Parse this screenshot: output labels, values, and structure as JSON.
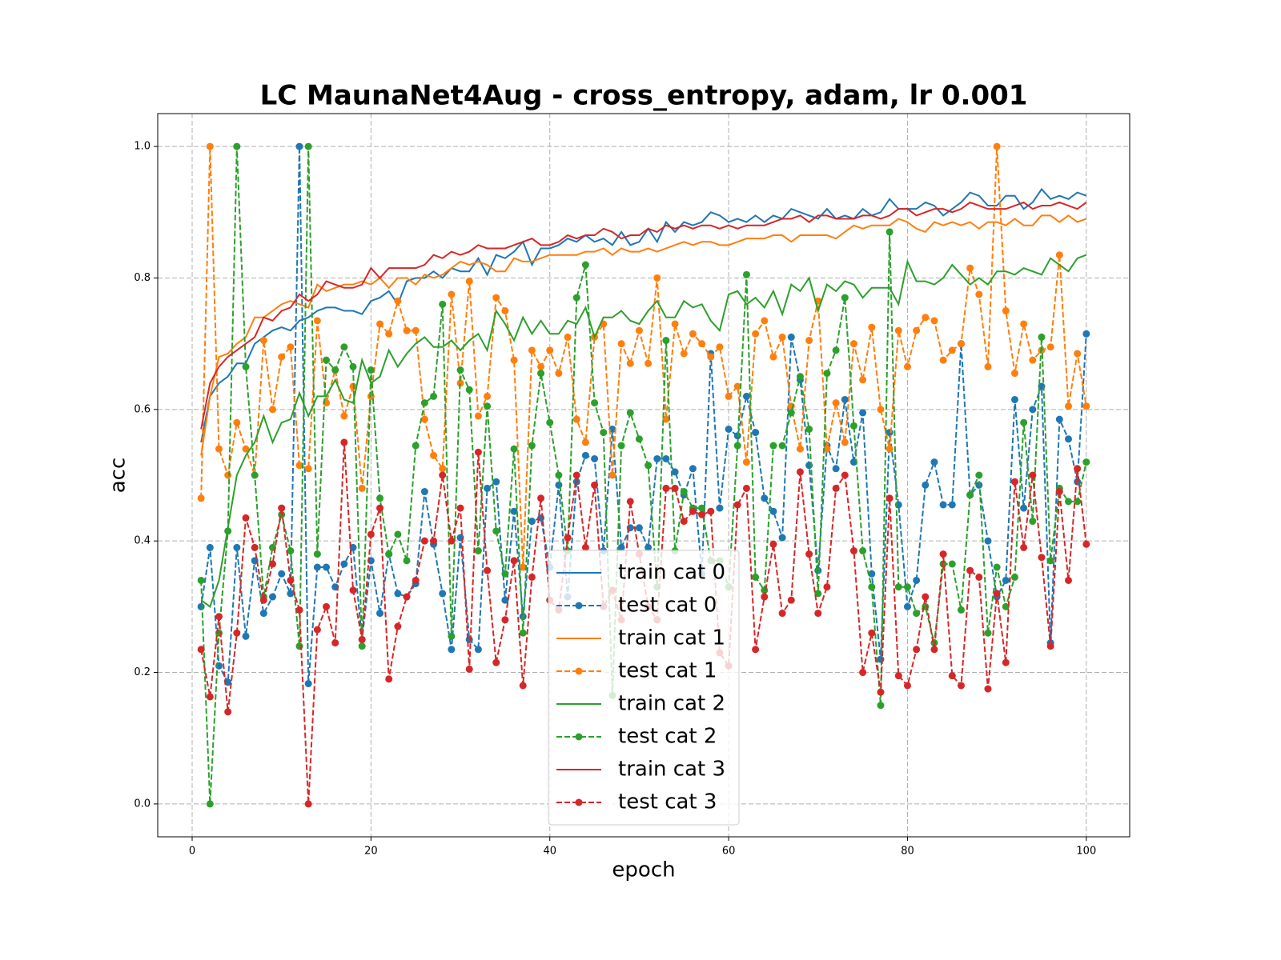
{
  "chart_data": {
    "type": "line",
    "title": "LC MaunaNet4Aug - cross_entropy, adam, lr 0.001",
    "xlabel": "epoch",
    "ylabel": "acc",
    "xlim": [
      -3.85,
      104.85
    ],
    "ylim": [
      -0.05,
      1.05
    ],
    "xticks": [
      0,
      20,
      40,
      60,
      80,
      100
    ],
    "yticks": [
      {
        "value": 0,
        "label": "0.0"
      },
      0.2,
      0.4,
      0.6,
      0.8,
      {
        "value": 1,
        "label": "1.0"
      }
    ],
    "grid": true,
    "legend_loc": "lower center",
    "x": [
      1,
      2,
      3,
      4,
      5,
      6,
      7,
      8,
      9,
      10,
      11,
      12,
      13,
      14,
      15,
      16,
      17,
      18,
      19,
      20,
      21,
      22,
      23,
      24,
      25,
      26,
      27,
      28,
      29,
      30,
      31,
      32,
      33,
      34,
      35,
      36,
      37,
      38,
      39,
      40,
      41,
      42,
      43,
      44,
      45,
      46,
      47,
      48,
      49,
      50,
      51,
      52,
      53,
      54,
      55,
      56,
      57,
      58,
      59,
      60,
      61,
      62,
      63,
      64,
      65,
      66,
      67,
      68,
      69,
      70,
      71,
      72,
      73,
      74,
      75,
      76,
      77,
      78,
      79,
      80,
      81,
      82,
      83,
      84,
      85,
      86,
      87,
      88,
      89,
      90,
      91,
      92,
      93,
      94,
      95,
      96,
      97,
      98,
      99,
      100
    ],
    "series": [
      {
        "name": "train cat 0",
        "color": "#1f77b4",
        "linestyle": "solid",
        "marker": false,
        "values": [
          0.55,
          0.62,
          0.64,
          0.65,
          0.67,
          0.67,
          0.7,
          0.71,
          0.72,
          0.725,
          0.72,
          0.735,
          0.74,
          0.75,
          0.755,
          0.755,
          0.75,
          0.75,
          0.745,
          0.765,
          0.77,
          0.78,
          0.76,
          0.795,
          0.8,
          0.8,
          0.81,
          0.8,
          0.815,
          0.81,
          0.81,
          0.83,
          0.805,
          0.835,
          0.83,
          0.84,
          0.855,
          0.82,
          0.845,
          0.845,
          0.85,
          0.86,
          0.855,
          0.865,
          0.855,
          0.86,
          0.85,
          0.87,
          0.85,
          0.855,
          0.875,
          0.855,
          0.885,
          0.87,
          0.885,
          0.88,
          0.885,
          0.9,
          0.895,
          0.885,
          0.89,
          0.885,
          0.895,
          0.885,
          0.895,
          0.89,
          0.905,
          0.9,
          0.895,
          0.89,
          0.905,
          0.89,
          0.895,
          0.89,
          0.905,
          0.895,
          0.9,
          0.92,
          0.905,
          0.905,
          0.905,
          0.915,
          0.91,
          0.895,
          0.905,
          0.915,
          0.93,
          0.925,
          0.91,
          0.91,
          0.925,
          0.925,
          0.905,
          0.915,
          0.935,
          0.92,
          0.925,
          0.92,
          0.93,
          0.925
        ]
      },
      {
        "name": "test cat 0",
        "color": "#1f77b4",
        "linestyle": "dashed",
        "marker": true,
        "values": [
          0.3,
          0.39,
          0.21,
          0.185,
          0.39,
          0.255,
          0.37,
          0.29,
          0.315,
          0.35,
          0.32,
          1.0,
          0.183,
          0.36,
          0.36,
          0.33,
          0.365,
          0.39,
          0.25,
          0.37,
          0.29,
          0.38,
          0.32,
          0.315,
          0.335,
          0.475,
          0.395,
          0.32,
          0.235,
          0.405,
          0.25,
          0.235,
          0.48,
          0.49,
          0.31,
          0.445,
          0.285,
          0.43,
          0.435,
          0.36,
          0.485,
          0.315,
          0.49,
          0.53,
          0.525,
          0.385,
          0.57,
          0.39,
          0.42,
          0.42,
          0.39,
          0.525,
          0.525,
          0.505,
          0.47,
          0.51,
          0.35,
          0.685,
          0.45,
          0.57,
          0.56,
          0.62,
          0.565,
          0.465,
          0.445,
          0.405,
          0.71,
          0.645,
          0.515,
          0.355,
          0.545,
          0.51,
          0.615,
          0.52,
          0.595,
          0.35,
          0.22,
          0.565,
          0.455,
          0.3,
          0.34,
          0.485,
          0.52,
          0.455,
          0.455,
          0.7,
          0.47,
          0.485,
          0.4,
          0.315,
          0.34,
          0.615,
          0.45,
          0.6,
          0.635,
          0.245,
          0.585,
          0.555,
          0.49,
          0.715
        ]
      },
      {
        "name": "train cat 1",
        "color": "#ff7f0e",
        "linestyle": "solid",
        "marker": false,
        "values": [
          0.53,
          0.62,
          0.68,
          0.685,
          0.7,
          0.71,
          0.74,
          0.74,
          0.75,
          0.76,
          0.765,
          0.76,
          0.755,
          0.79,
          0.78,
          0.785,
          0.79,
          0.79,
          0.795,
          0.79,
          0.8,
          0.785,
          0.8,
          0.8,
          0.79,
          0.805,
          0.8,
          0.805,
          0.815,
          0.825,
          0.82,
          0.825,
          0.82,
          0.81,
          0.81,
          0.83,
          0.825,
          0.825,
          0.83,
          0.835,
          0.835,
          0.835,
          0.835,
          0.84,
          0.84,
          0.845,
          0.835,
          0.845,
          0.84,
          0.84,
          0.845,
          0.84,
          0.845,
          0.85,
          0.855,
          0.85,
          0.855,
          0.855,
          0.85,
          0.85,
          0.855,
          0.86,
          0.86,
          0.86,
          0.865,
          0.865,
          0.855,
          0.865,
          0.865,
          0.865,
          0.865,
          0.86,
          0.87,
          0.88,
          0.875,
          0.88,
          0.88,
          0.88,
          0.89,
          0.885,
          0.875,
          0.87,
          0.885,
          0.88,
          0.885,
          0.88,
          0.885,
          0.875,
          0.885,
          0.885,
          0.88,
          0.89,
          0.88,
          0.88,
          0.895,
          0.895,
          0.885,
          0.895,
          0.885,
          0.89
        ]
      },
      {
        "name": "test cat 1",
        "color": "#ff7f0e",
        "linestyle": "dashed",
        "marker": true,
        "values": [
          0.465,
          1.0,
          0.54,
          0.5,
          0.58,
          0.54,
          0.5,
          0.705,
          0.6,
          0.68,
          0.695,
          0.515,
          0.51,
          0.735,
          0.61,
          0.66,
          0.59,
          0.635,
          0.48,
          0.62,
          0.73,
          0.715,
          0.765,
          0.72,
          0.72,
          0.585,
          0.53,
          0.51,
          0.775,
          0.64,
          0.795,
          0.59,
          0.62,
          0.77,
          0.75,
          0.675,
          0.36,
          0.69,
          0.665,
          0.69,
          0.655,
          0.71,
          0.585,
          0.55,
          0.71,
          0.73,
          0.5,
          0.7,
          0.67,
          0.72,
          0.67,
          0.8,
          0.585,
          0.73,
          0.685,
          0.715,
          0.7,
          0.68,
          0.695,
          0.62,
          0.635,
          0.52,
          0.715,
          0.735,
          0.68,
          0.71,
          0.605,
          0.54,
          0.705,
          0.765,
          0.54,
          0.61,
          0.55,
          0.7,
          0.645,
          0.725,
          0.6,
          0.54,
          0.72,
          0.665,
          0.72,
          0.74,
          0.735,
          0.675,
          0.69,
          0.7,
          0.815,
          0.775,
          0.665,
          1.0,
          0.75,
          0.655,
          0.73,
          0.675,
          0.69,
          0.695,
          0.835,
          0.605,
          0.685,
          0.605
        ]
      },
      {
        "name": "train cat 2",
        "color": "#2ca02c",
        "linestyle": "solid",
        "marker": false,
        "values": [
          0.31,
          0.3,
          0.34,
          0.42,
          0.5,
          0.53,
          0.55,
          0.59,
          0.55,
          0.58,
          0.585,
          0.625,
          0.59,
          0.62,
          0.62,
          0.645,
          0.615,
          0.61,
          0.675,
          0.64,
          0.65,
          0.69,
          0.665,
          0.685,
          0.7,
          0.71,
          0.695,
          0.695,
          0.705,
          0.69,
          0.705,
          0.715,
          0.69,
          0.75,
          0.73,
          0.705,
          0.74,
          0.715,
          0.735,
          0.715,
          0.715,
          0.735,
          0.73,
          0.755,
          0.71,
          0.74,
          0.74,
          0.75,
          0.735,
          0.73,
          0.75,
          0.765,
          0.74,
          0.74,
          0.765,
          0.755,
          0.76,
          0.735,
          0.72,
          0.775,
          0.78,
          0.76,
          0.77,
          0.755,
          0.78,
          0.745,
          0.79,
          0.78,
          0.8,
          0.75,
          0.79,
          0.78,
          0.795,
          0.79,
          0.77,
          0.785,
          0.785,
          0.785,
          0.76,
          0.825,
          0.795,
          0.795,
          0.79,
          0.8,
          0.82,
          0.805,
          0.79,
          0.8,
          0.79,
          0.81,
          0.81,
          0.805,
          0.815,
          0.81,
          0.805,
          0.83,
          0.82,
          0.81,
          0.83,
          0.835
        ]
      },
      {
        "name": "test cat 2",
        "color": "#2ca02c",
        "linestyle": "dashed",
        "marker": true,
        "values": [
          0.34,
          0,
          0.26,
          0.415,
          1.0,
          0.665,
          0.5,
          0.315,
          0.39,
          0.44,
          0.385,
          0.24,
          1.0,
          0.38,
          0.675,
          0.66,
          0.695,
          0.665,
          0.24,
          0.66,
          0.465,
          0.38,
          0.41,
          0.37,
          0.545,
          0.61,
          0.62,
          0.76,
          0.255,
          0.66,
          0.63,
          0.385,
          0.605,
          0.415,
          0.35,
          0.54,
          0.26,
          0.545,
          0.655,
          0.58,
          0.5,
          0.385,
          0.77,
          0.82,
          0.61,
          0.565,
          0.165,
          0.545,
          0.595,
          0.555,
          0.515,
          0.33,
          0.705,
          0.385,
          0.475,
          0.45,
          0.45,
          0.37,
          0.37,
          0.33,
          0.545,
          0.805,
          0.345,
          0.325,
          0.545,
          0.545,
          0.595,
          0.65,
          0.57,
          0.32,
          0.655,
          0.69,
          0.77,
          0.575,
          0.385,
          0.33,
          0.15,
          0.87,
          0.33,
          0.33,
          0.29,
          0.3,
          0.245,
          0.365,
          0.365,
          0.295,
          0.47,
          0.5,
          0.26,
          0.36,
          0.3,
          0.345,
          0.58,
          0.43,
          0.71,
          0.37,
          0.48,
          0.46,
          0.46,
          0.52
        ]
      },
      {
        "name": "train cat 3",
        "color": "#d62728",
        "linestyle": "solid",
        "marker": false,
        "values": [
          0.57,
          0.64,
          0.665,
          0.68,
          0.69,
          0.7,
          0.71,
          0.74,
          0.735,
          0.75,
          0.755,
          0.775,
          0.765,
          0.775,
          0.795,
          0.79,
          0.785,
          0.785,
          0.79,
          0.815,
          0.8,
          0.815,
          0.815,
          0.815,
          0.815,
          0.82,
          0.835,
          0.83,
          0.84,
          0.835,
          0.84,
          0.85,
          0.845,
          0.845,
          0.845,
          0.85,
          0.855,
          0.86,
          0.85,
          0.85,
          0.855,
          0.865,
          0.86,
          0.865,
          0.865,
          0.875,
          0.87,
          0.86,
          0.865,
          0.865,
          0.875,
          0.87,
          0.88,
          0.875,
          0.88,
          0.875,
          0.88,
          0.88,
          0.875,
          0.88,
          0.875,
          0.88,
          0.88,
          0.88,
          0.885,
          0.89,
          0.89,
          0.895,
          0.885,
          0.895,
          0.895,
          0.89,
          0.89,
          0.89,
          0.895,
          0.895,
          0.89,
          0.895,
          0.905,
          0.905,
          0.895,
          0.9,
          0.905,
          0.905,
          0.9,
          0.905,
          0.915,
          0.91,
          0.905,
          0.905,
          0.905,
          0.91,
          0.915,
          0.905,
          0.91,
          0.91,
          0.915,
          0.91,
          0.905,
          0.915
        ]
      },
      {
        "name": "test cat 3",
        "color": "#d62728",
        "linestyle": "dashed",
        "marker": true,
        "values": [
          0.235,
          0.163,
          0.285,
          0.14,
          0.26,
          0.435,
          0.39,
          0.31,
          0.365,
          0.45,
          0.34,
          0.295,
          0,
          0.265,
          0.3,
          0.245,
          0.55,
          0.325,
          0.25,
          0.41,
          0.45,
          0.19,
          0.27,
          0.315,
          0.34,
          0.4,
          0.4,
          0.5,
          0.4,
          0.45,
          0.205,
          0.535,
          0.355,
          0.215,
          0.28,
          0.37,
          0.18,
          0.345,
          0.465,
          0.31,
          0.295,
          0.405,
          0.5,
          0.39,
          0.485,
          0.3,
          0.325,
          0.28,
          0.46,
          0.38,
          0.3,
          0.28,
          0.48,
          0.48,
          0.43,
          0.445,
          0.44,
          0.445,
          0.23,
          0.21,
          0.455,
          0.48,
          0.235,
          0.315,
          0.395,
          0.29,
          0.31,
          0.505,
          0.38,
          0.29,
          0.33,
          0.48,
          0.5,
          0.385,
          0.2,
          0.26,
          0.17,
          0.465,
          0.195,
          0.18,
          0.235,
          0.315,
          0.235,
          0.38,
          0.195,
          0.18,
          0.355,
          0.345,
          0.175,
          0.32,
          0.215,
          0.49,
          0.39,
          0.5,
          0.375,
          0.24,
          0.475,
          0.34,
          0.51,
          0.395
        ]
      }
    ]
  }
}
